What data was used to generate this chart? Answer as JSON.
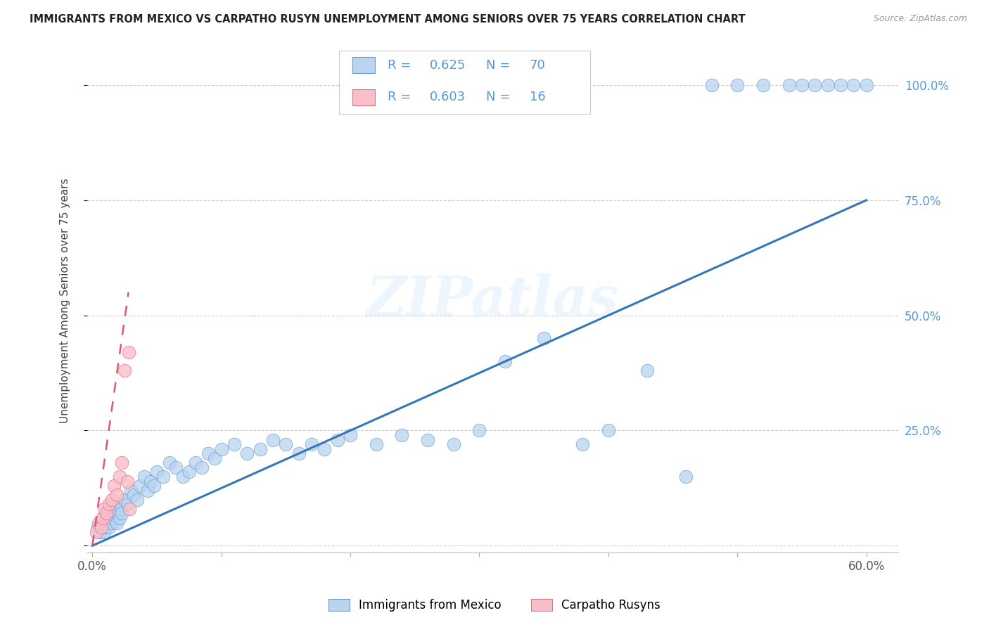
{
  "title": "IMMIGRANTS FROM MEXICO VS CARPATHO RUSYN UNEMPLOYMENT AMONG SENIORS OVER 75 YEARS CORRELATION CHART",
  "source": "Source: ZipAtlas.com",
  "ylabel": "Unemployment Among Seniors over 75 years",
  "watermark_text": "ZIPatlas",
  "legend_mexico_R": "0.625",
  "legend_mexico_N": "70",
  "legend_rusyn_R": "0.603",
  "legend_rusyn_N": "16",
  "blue_fill": "#B8D4F0",
  "blue_edge": "#6699CC",
  "pink_fill": "#F9BEC8",
  "pink_edge": "#E0708A",
  "trendline_blue": "#3377BB",
  "trendline_pink": "#DD5577",
  "legend_blue_color": "#5599DD",
  "grid_color": "#CCCCCC",
  "xlim": [
    -0.004,
    0.625
  ],
  "ylim": [
    -0.015,
    1.08
  ],
  "xtick_positions": [
    0.0,
    0.1,
    0.2,
    0.3,
    0.4,
    0.5,
    0.6
  ],
  "xtick_labels": [
    "0.0%",
    "",
    "",
    "",
    "",
    "",
    "60.0%"
  ],
  "ytick_positions": [
    0.0,
    0.25,
    0.5,
    0.75,
    1.0
  ],
  "ytick_labels_right": [
    "",
    "25.0%",
    "50.0%",
    "75.0%",
    "100.0%"
  ],
  "blue_trend_x": [
    0.0,
    0.6
  ],
  "blue_trend_y": [
    0.0,
    0.75
  ],
  "pink_trend_x": [
    0.0,
    0.028
  ],
  "pink_trend_y": [
    0.0,
    0.55
  ],
  "mexico_x": [
    0.004,
    0.006,
    0.007,
    0.009,
    0.01,
    0.011,
    0.012,
    0.013,
    0.014,
    0.015,
    0.016,
    0.017,
    0.018,
    0.019,
    0.02,
    0.021,
    0.022,
    0.023,
    0.025,
    0.027,
    0.03,
    0.032,
    0.035,
    0.037,
    0.04,
    0.043,
    0.045,
    0.048,
    0.05,
    0.055,
    0.06,
    0.065,
    0.07,
    0.075,
    0.08,
    0.085,
    0.09,
    0.095,
    0.1,
    0.11,
    0.12,
    0.13,
    0.14,
    0.15,
    0.16,
    0.17,
    0.18,
    0.19,
    0.2,
    0.22,
    0.24,
    0.26,
    0.28,
    0.3,
    0.32,
    0.35,
    0.38,
    0.4,
    0.43,
    0.46,
    0.48,
    0.5,
    0.52,
    0.54,
    0.55,
    0.56,
    0.57,
    0.58,
    0.59,
    0.6
  ],
  "mexico_y": [
    0.04,
    0.03,
    0.05,
    0.03,
    0.04,
    0.06,
    0.05,
    0.04,
    0.06,
    0.05,
    0.07,
    0.06,
    0.08,
    0.05,
    0.07,
    0.06,
    0.08,
    0.07,
    0.1,
    0.09,
    0.12,
    0.11,
    0.1,
    0.13,
    0.15,
    0.12,
    0.14,
    0.13,
    0.16,
    0.15,
    0.18,
    0.17,
    0.15,
    0.16,
    0.18,
    0.17,
    0.2,
    0.19,
    0.21,
    0.22,
    0.2,
    0.21,
    0.23,
    0.22,
    0.2,
    0.22,
    0.21,
    0.23,
    0.24,
    0.22,
    0.24,
    0.23,
    0.22,
    0.25,
    0.4,
    0.45,
    0.22,
    0.25,
    0.38,
    0.15,
    1.0,
    1.0,
    1.0,
    1.0,
    1.0,
    1.0,
    1.0,
    1.0,
    1.0,
    1.0
  ],
  "rusyn_x": [
    0.003,
    0.005,
    0.007,
    0.008,
    0.009,
    0.011,
    0.013,
    0.015,
    0.017,
    0.019,
    0.021,
    0.023,
    0.025,
    0.027,
    0.028,
    0.029
  ],
  "rusyn_y": [
    0.03,
    0.05,
    0.04,
    0.06,
    0.08,
    0.07,
    0.09,
    0.1,
    0.13,
    0.11,
    0.15,
    0.18,
    0.38,
    0.14,
    0.42,
    0.08
  ]
}
